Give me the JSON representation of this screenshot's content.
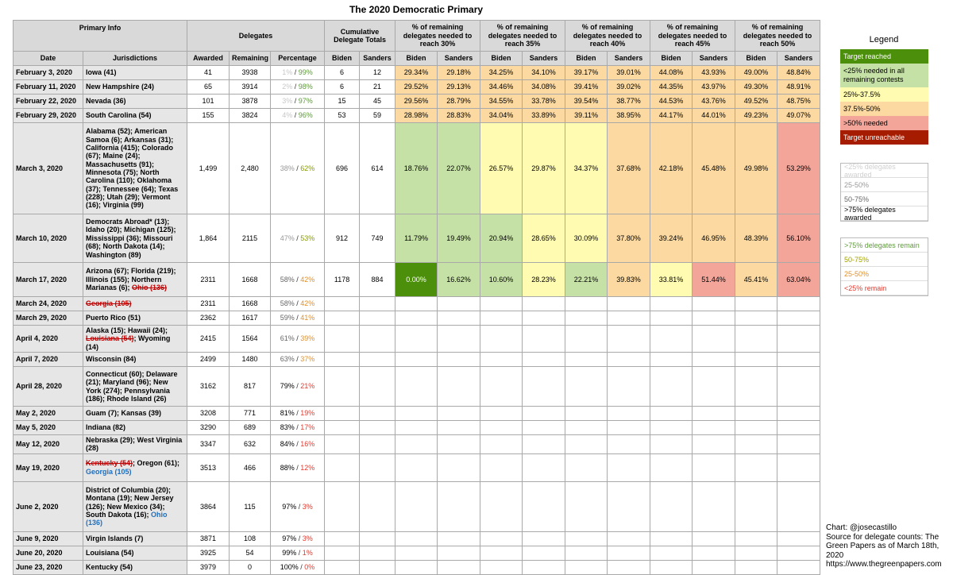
{
  "title": "The 2020 Democratic Primary",
  "headers": {
    "primary_info": "Primary Info",
    "delegates": "Delegates",
    "cumulative": "Cumulative Delegate Totals",
    "needed": [
      "% of remaining delegates needed to reach 30%",
      "% of remaining delegates needed to reach 35%",
      "% of remaining delegates needed to reach 40%",
      "% of remaining delegates needed to reach 45%",
      "% of remaining delegates needed to reach 50%"
    ],
    "date": "Date",
    "jurisdictions": "Jurisdictions",
    "awarded": "Awarded",
    "remaining": "Remaining",
    "percentage": "Percentage",
    "biden": "Biden",
    "sanders": "Sanders"
  },
  "chart_data": {
    "type": "table",
    "title": "The 2020 Democratic Primary",
    "rows": [
      {
        "date": "February 3, 2020",
        "jur": [
          {
            "t": "Iowa (41)"
          }
        ],
        "awarded": "41",
        "remaining": "3938",
        "aw_pct": "1%",
        "rem_pct": "99%",
        "biden": "6",
        "sanders": "12",
        "cells": [
          [
            "29.34%",
            "p"
          ],
          [
            "29.18%",
            "p"
          ],
          [
            "34.25%",
            "p"
          ],
          [
            "34.10%",
            "p"
          ],
          [
            "39.17%",
            "p"
          ],
          [
            "39.01%",
            "p"
          ],
          [
            "44.08%",
            "p"
          ],
          [
            "43.93%",
            "p"
          ],
          [
            "49.00%",
            "p"
          ],
          [
            "48.84%",
            "p"
          ]
        ]
      },
      {
        "date": "February 11, 2020",
        "jur": [
          {
            "t": "New Hampshire (24)"
          }
        ],
        "awarded": "65",
        "remaining": "3914",
        "aw_pct": "2%",
        "rem_pct": "98%",
        "biden": "6",
        "sanders": "21",
        "cells": [
          [
            "29.52%",
            "p"
          ],
          [
            "29.13%",
            "p"
          ],
          [
            "34.46%",
            "p"
          ],
          [
            "34.08%",
            "p"
          ],
          [
            "39.41%",
            "p"
          ],
          [
            "39.02%",
            "p"
          ],
          [
            "44.35%",
            "p"
          ],
          [
            "43.97%",
            "p"
          ],
          [
            "49.30%",
            "p"
          ],
          [
            "48.91%",
            "p"
          ]
        ]
      },
      {
        "date": "February 22, 2020",
        "jur": [
          {
            "t": "Nevada (36)"
          }
        ],
        "awarded": "101",
        "remaining": "3878",
        "aw_pct": "3%",
        "rem_pct": "97%",
        "biden": "15",
        "sanders": "45",
        "cells": [
          [
            "29.56%",
            "p"
          ],
          [
            "28.79%",
            "p"
          ],
          [
            "34.55%",
            "p"
          ],
          [
            "33.78%",
            "p"
          ],
          [
            "39.54%",
            "p"
          ],
          [
            "38.77%",
            "p"
          ],
          [
            "44.53%",
            "p"
          ],
          [
            "43.76%",
            "p"
          ],
          [
            "49.52%",
            "p"
          ],
          [
            "48.75%",
            "p"
          ]
        ]
      },
      {
        "date": "February 29, 2020",
        "jur": [
          {
            "t": "South Carolina (54)"
          }
        ],
        "awarded": "155",
        "remaining": "3824",
        "aw_pct": "4%",
        "rem_pct": "96%",
        "biden": "53",
        "sanders": "59",
        "cells": [
          [
            "28.98%",
            "p"
          ],
          [
            "28.83%",
            "p"
          ],
          [
            "34.04%",
            "p"
          ],
          [
            "33.89%",
            "p"
          ],
          [
            "39.11%",
            "p"
          ],
          [
            "38.95%",
            "p"
          ],
          [
            "44.17%",
            "p"
          ],
          [
            "44.01%",
            "p"
          ],
          [
            "49.23%",
            "p"
          ],
          [
            "49.07%",
            "p"
          ]
        ]
      },
      {
        "date": "March 3, 2020",
        "jur": [
          {
            "t": "Alabama (52); American Samoa (6); Arkansas (31); California (415); Colorado (67); Maine (24); Massachusetts (91); Minnesota (75); North Carolina (110); Oklahoma (37); Tennessee (64); Texas (228); Utah (29); Vermont (16); Virginia (99)"
          }
        ],
        "awarded": "1,499",
        "remaining": "2,480",
        "aw_pct": "38%",
        "rem_pct": "62%",
        "biden": "696",
        "sanders": "614",
        "tall": 1,
        "cells": [
          [
            "18.76%",
            "g"
          ],
          [
            "22.07%",
            "g"
          ],
          [
            "26.57%",
            "y"
          ],
          [
            "29.87%",
            "y"
          ],
          [
            "34.37%",
            "y"
          ],
          [
            "37.68%",
            "o"
          ],
          [
            "42.18%",
            "o"
          ],
          [
            "45.48%",
            "o"
          ],
          [
            "49.98%",
            "o"
          ],
          [
            "53.29%",
            "r"
          ]
        ]
      },
      {
        "date": "March 10, 2020",
        "jur": [
          {
            "t": "Democrats Abroad* (13); Idaho (20); Michigan (125); Mississippi (36); Missouri (68); North Dakota (14); Washington (89)"
          }
        ],
        "awarded": "1,864",
        "remaining": "2115",
        "aw_pct": "47%",
        "rem_pct": "53%",
        "biden": "912",
        "sanders": "749",
        "cells": [
          [
            "11.79%",
            "g"
          ],
          [
            "19.49%",
            "g"
          ],
          [
            "20.94%",
            "g"
          ],
          [
            "28.65%",
            "y"
          ],
          [
            "30.09%",
            "y"
          ],
          [
            "37.80%",
            "o"
          ],
          [
            "39.24%",
            "o"
          ],
          [
            "46.95%",
            "o"
          ],
          [
            "48.39%",
            "o"
          ],
          [
            "56.10%",
            "r"
          ]
        ]
      },
      {
        "date": "March 17, 2020",
        "jur": [
          {
            "t": "Arizona (67); Florida (219); Illinois (155); Northern Marianas (6); "
          },
          {
            "t": "Ohio (136)",
            "s": 1
          }
        ],
        "awarded": "2311",
        "remaining": "1668",
        "aw_pct": "58%",
        "rem_pct": "42%",
        "biden": "1178",
        "sanders": "884",
        "cells": [
          [
            "0.00%",
            "dg"
          ],
          [
            "16.62%",
            "g"
          ],
          [
            "10.60%",
            "g"
          ],
          [
            "28.23%",
            "y"
          ],
          [
            "22.21%",
            "g"
          ],
          [
            "39.83%",
            "o"
          ],
          [
            "33.81%",
            "y"
          ],
          [
            "51.44%",
            "r"
          ],
          [
            "45.41%",
            "o"
          ],
          [
            "63.04%",
            "r"
          ]
        ]
      },
      {
        "date": "March 24, 2020",
        "jur": [
          {
            "t": "Georgia (105)",
            "s": 1
          }
        ],
        "awarded": "2311",
        "remaining": "1668",
        "aw_pct": "58%",
        "rem_pct": "42%"
      },
      {
        "date": "March 29, 2020",
        "jur": [
          {
            "t": "Puerto Rico (51)"
          }
        ],
        "awarded": "2362",
        "remaining": "1617",
        "aw_pct": "59%",
        "rem_pct": "41%"
      },
      {
        "date": "April 4, 2020",
        "jur": [
          {
            "t": "Alaska (15); Hawaii (24); "
          },
          {
            "t": "Louisiana (54)",
            "s": 1
          },
          {
            "t": "; Wyoming (14)"
          }
        ],
        "awarded": "2415",
        "remaining": "1564",
        "aw_pct": "61%",
        "rem_pct": "39%"
      },
      {
        "date": "April 7, 2020",
        "jur": [
          {
            "t": "Wisconsin (84)"
          }
        ],
        "awarded": "2499",
        "remaining": "1480",
        "aw_pct": "63%",
        "rem_pct": "37%"
      },
      {
        "date": "April 28, 2020",
        "jur": [
          {
            "t": "Connecticut (60); Delaware (21); Maryland (96); New York (274); Pennsylvania (186); Rhode Island (26)"
          }
        ],
        "awarded": "3162",
        "remaining": "817",
        "aw_pct": "79%",
        "rem_pct": "21%"
      },
      {
        "date": "May 2, 2020",
        "jur": [
          {
            "t": "Guam (7); Kansas (39)"
          }
        ],
        "awarded": "3208",
        "remaining": "771",
        "aw_pct": "81%",
        "rem_pct": "19%"
      },
      {
        "date": "May 5, 2020",
        "jur": [
          {
            "t": "Indiana (82)"
          }
        ],
        "awarded": "3290",
        "remaining": "689",
        "aw_pct": "83%",
        "rem_pct": "17%"
      },
      {
        "date": "May 12, 2020",
        "jur": [
          {
            "t": "Nebraska (29); West Virginia (28)"
          }
        ],
        "awarded": "3347",
        "remaining": "632",
        "aw_pct": "84%",
        "rem_pct": "16%"
      },
      {
        "date": "May 19, 2020",
        "jur": [
          {
            "t": "Kentucky (54)",
            "s": 1
          },
          {
            "t": "; Oregon (61); "
          },
          {
            "t": "Georgia (105)",
            "b": 1
          }
        ],
        "awarded": "3513",
        "remaining": "466",
        "aw_pct": "88%",
        "rem_pct": "12%"
      },
      {
        "date": "June 2, 2020",
        "jur": [
          {
            "t": "District of Columbia (20); Montana (19); New Jersey (126); New Mexico (34); South Dakota (16); "
          },
          {
            "t": "Ohio (136)",
            "b": 1
          }
        ],
        "awarded": "3864",
        "remaining": "115",
        "aw_pct": "97%",
        "rem_pct": "3%"
      },
      {
        "date": "June 9, 2020",
        "jur": [
          {
            "t": "Virgin Islands (7)"
          }
        ],
        "awarded": "3871",
        "remaining": "108",
        "aw_pct": "97%",
        "rem_pct": "3%"
      },
      {
        "date": "June 20, 2020",
        "jur": [
          {
            "t": "Louisiana (54)"
          }
        ],
        "awarded": "3925",
        "remaining": "54",
        "aw_pct": "99%",
        "rem_pct": "1%"
      },
      {
        "date": "June 23, 2020",
        "jur": [
          {
            "t": "Kentucky (54)"
          }
        ],
        "awarded": "3979",
        "remaining": "0",
        "aw_pct": "100%",
        "rem_pct": "0%"
      }
    ]
  },
  "colors": {
    "dg": "#4b8f0a",
    "g": "#c5e1a5",
    "y": "#fffbb0",
    "o": "#fbd9a0",
    "r": "#f3a59a",
    "dr": "#a61c00",
    "p": "#fbd9a0",
    "grey_text": "#999999",
    "green_text": "#5f9a3c",
    "yellow_text": "#b8a200",
    "orange_text": "#e0902a",
    "red_text": "#e03c31"
  },
  "legend": {
    "title": "Legend",
    "needed": [
      {
        "label": "Target reached",
        "bg": "#4b8f0a",
        "fg": "#ffffff"
      },
      {
        "label": "<25% needed in all remaining contests",
        "bg": "#c5e1a5",
        "fg": "#000000"
      },
      {
        "label": "25%-37.5%",
        "bg": "#fffbb0",
        "fg": "#000000"
      },
      {
        "label": "37.5%-50%",
        "bg": "#fbd9a0",
        "fg": "#000000"
      },
      {
        "label": ">50% needed",
        "bg": "#f3a59a",
        "fg": "#000000"
      },
      {
        "label": "Target unreachable",
        "bg": "#a61c00",
        "fg": "#ffffff"
      }
    ],
    "awarded": [
      {
        "label": "<25% delegates awarded",
        "fg": "#d0d0d0"
      },
      {
        "label": "25-50%",
        "fg": "#999999"
      },
      {
        "label": "50-75%",
        "fg": "#666666"
      },
      {
        "label": ">75% delegates awarded",
        "fg": "#000000"
      }
    ],
    "remain": [
      {
        "label": ">75% delegates remain",
        "fg": "#5f9a3c"
      },
      {
        "label": "50-75%",
        "fg": "#a0a000"
      },
      {
        "label": "25-50%",
        "fg": "#e0902a"
      },
      {
        "label": "<25% remain",
        "fg": "#e03c31"
      }
    ]
  },
  "footer": {
    "credit": "Chart: @josecastillo",
    "source": "Source for delegate counts: The Green Papers as of March 18th, 2020",
    "url": "https://www.thegreenpapers.com"
  }
}
